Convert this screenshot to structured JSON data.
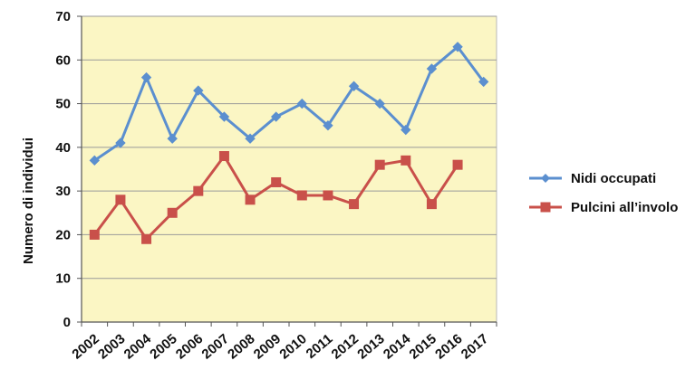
{
  "chart_data": {
    "type": "line",
    "title": "",
    "xlabel": "",
    "ylabel": "Numero di individui",
    "x": [
      "2002",
      "2003",
      "2004",
      "2005",
      "2006",
      "2007",
      "2008",
      "2009",
      "2010",
      "2011",
      "2012",
      "2013",
      "2014",
      "2015",
      "2016",
      "2017"
    ],
    "ylim": [
      0,
      70
    ],
    "yticks": [
      0,
      10,
      20,
      30,
      40,
      50,
      60,
      70
    ],
    "grid": true,
    "legend_position": "right",
    "plot_background": "#fbf6c4",
    "series": [
      {
        "name": "Nidi occupati",
        "color": "#5b8fcf",
        "marker": "diamond",
        "values": [
          37,
          41,
          56,
          42,
          53,
          47,
          42,
          47,
          50,
          45,
          54,
          50,
          44,
          58,
          63,
          55
        ]
      },
      {
        "name": "Pulcini all’involo",
        "color": "#c9504a",
        "marker": "square",
        "values": [
          20,
          28,
          19,
          25,
          30,
          38,
          28,
          32,
          29,
          29,
          27,
          36,
          37,
          27,
          36,
          null
        ]
      }
    ]
  }
}
